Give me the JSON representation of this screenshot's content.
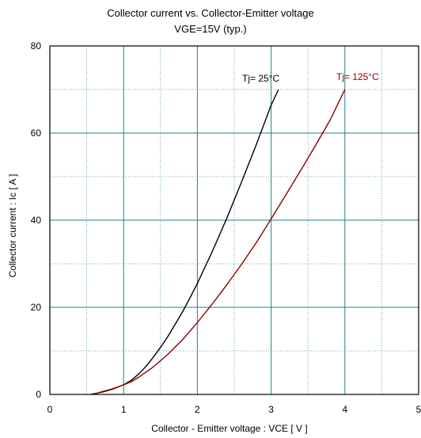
{
  "chart_data": {
    "type": "line",
    "title": "Collector current  vs.  Collector-Emitter voltage",
    "subtitle": "VGE=15V  (typ.)",
    "xlabel": "Collector - Emitter voltage  :  VCE  [ V ]",
    "ylabel": "Collector current  :  Ic  [ A ]",
    "xlim": [
      0,
      5
    ],
    "ylim": [
      0,
      80
    ],
    "x_ticks": [
      0,
      1,
      2,
      3,
      4,
      5
    ],
    "y_ticks": [
      0,
      20,
      40,
      60,
      80
    ],
    "x_minor_step": 0.5,
    "y_minor_step": 10,
    "grid": true,
    "series": [
      {
        "name": "Tj= 25°C",
        "color": "#000000",
        "points": [
          [
            0.55,
            0.0
          ],
          [
            0.7,
            0.5
          ],
          [
            0.85,
            1.2
          ],
          [
            1.0,
            2.2
          ],
          [
            1.1,
            3.2
          ],
          [
            1.2,
            4.6
          ],
          [
            1.3,
            6.4
          ],
          [
            1.4,
            8.5
          ],
          [
            1.5,
            10.8
          ],
          [
            1.6,
            13.3
          ],
          [
            1.7,
            16.1
          ],
          [
            1.8,
            19.0
          ],
          [
            1.9,
            22.2
          ],
          [
            2.0,
            25.5
          ],
          [
            2.2,
            32.7
          ],
          [
            2.4,
            40.5
          ],
          [
            2.6,
            48.8
          ],
          [
            2.8,
            57.4
          ],
          [
            3.0,
            66.4
          ],
          [
            3.1,
            70.0
          ]
        ]
      },
      {
        "name": "Tj= 125°C",
        "color": "#8b0000",
        "points": [
          [
            0.6,
            0.0
          ],
          [
            0.7,
            0.6
          ],
          [
            0.85,
            1.3
          ],
          [
            1.0,
            2.2
          ],
          [
            1.1,
            2.9
          ],
          [
            1.2,
            3.9
          ],
          [
            1.4,
            6.3
          ],
          [
            1.6,
            9.2
          ],
          [
            1.8,
            12.6
          ],
          [
            2.0,
            16.5
          ],
          [
            2.2,
            20.7
          ],
          [
            2.4,
            25.2
          ],
          [
            2.6,
            29.9
          ],
          [
            2.8,
            34.9
          ],
          [
            3.0,
            40.3
          ],
          [
            3.2,
            45.8
          ],
          [
            3.4,
            51.4
          ],
          [
            3.6,
            57.1
          ],
          [
            3.8,
            63.0
          ],
          [
            4.0,
            70.0
          ]
        ]
      }
    ],
    "labels": [
      {
        "text": "Tj= 25°C",
        "color": "#000000"
      },
      {
        "text": "Tj= 125°C",
        "color": "#8b0000"
      }
    ]
  }
}
